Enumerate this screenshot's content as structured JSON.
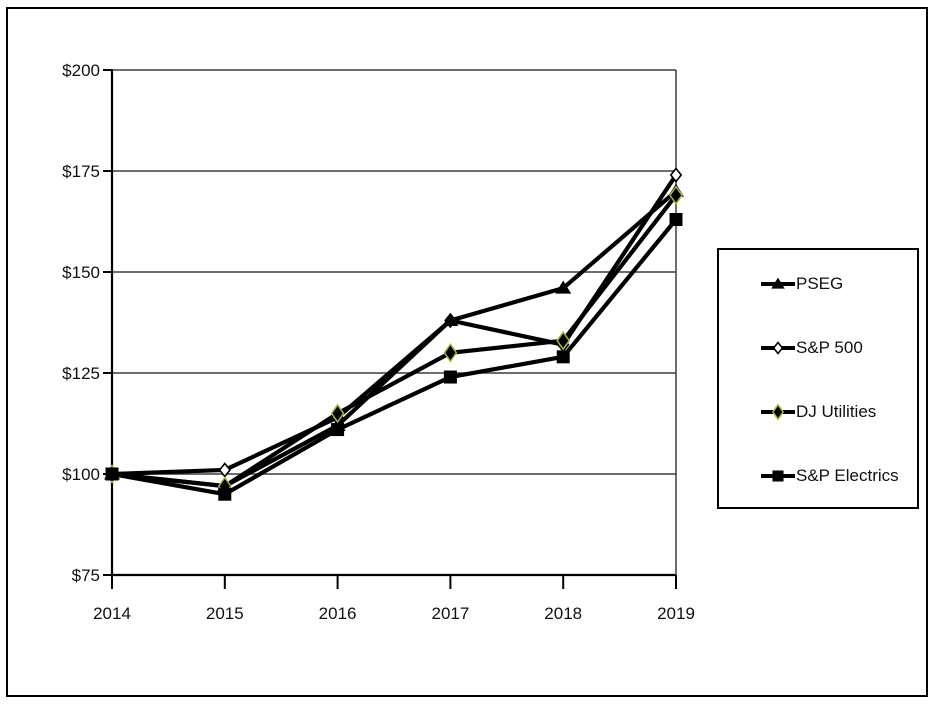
{
  "figure": {
    "background": "#ffffff",
    "border_color": "#000000",
    "line_color": "#000000",
    "gridline_color": "#3d3d3d",
    "dj_utilities_marker_edge": "#a6b432"
  },
  "chart_data": {
    "type": "line",
    "title": "",
    "xlabel": "",
    "ylabel": "",
    "x_labels": [
      "2014",
      "2015",
      "2016",
      "2017",
      "2018",
      "2019"
    ],
    "y_tick_labels": [
      "$75",
      "$100",
      "$125",
      "$150",
      "$175",
      "$200"
    ],
    "y_tick_values": [
      75,
      100,
      125,
      150,
      175,
      200
    ],
    "ylim": [
      75,
      200
    ],
    "grid": "horizontal",
    "legend_position": "right",
    "series": [
      {
        "name": "PSEG",
        "marker": "triangle",
        "color": "#000000",
        "marker_fill": "#000000",
        "marker_edge": "#000000",
        "values": [
          100,
          97,
          112,
          138,
          146,
          170
        ]
      },
      {
        "name": "S&P 500",
        "marker": "diamond-open",
        "color": "#000000",
        "marker_fill": "#ffffff",
        "marker_edge": "#000000",
        "values": [
          100,
          101,
          114,
          138,
          132,
          174
        ]
      },
      {
        "name": "DJ Utilities",
        "marker": "diamond",
        "color": "#000000",
        "marker_fill": "#000000",
        "marker_edge": "#a6b432",
        "values": [
          100,
          97,
          115,
          130,
          133,
          169
        ]
      },
      {
        "name": "S&P Electrics",
        "marker": "square",
        "color": "#000000",
        "marker_fill": "#000000",
        "marker_edge": "#000000",
        "values": [
          100,
          95,
          111,
          124,
          129,
          163
        ]
      }
    ]
  }
}
